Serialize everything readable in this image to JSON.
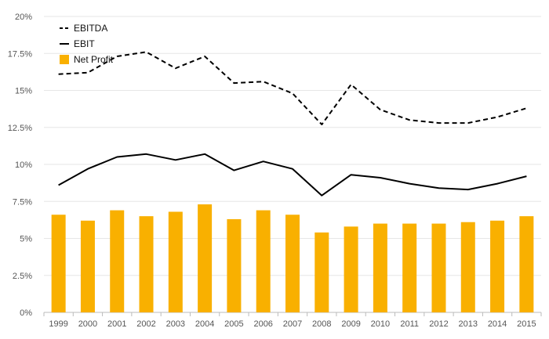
{
  "chart_data": {
    "type": "bar",
    "title": "",
    "xlabel": "",
    "ylabel": "",
    "categories": [
      "1999",
      "2000",
      "2001",
      "2002",
      "2003",
      "2004",
      "2005",
      "2006",
      "2007",
      "2008",
      "2009",
      "2010",
      "2011",
      "2012",
      "2013",
      "2014",
      "2015"
    ],
    "y_tick_labels": [
      "0%",
      "2.5%",
      "5%",
      "7.5%",
      "10%",
      "12.5%",
      "15%",
      "17.5%",
      "20%"
    ],
    "y_ticks": [
      0,
      2.5,
      5,
      7.5,
      10,
      12.5,
      15,
      17.5,
      20
    ],
    "ylim": [
      0,
      20
    ],
    "grid": true,
    "legend_position": "top-left",
    "series": [
      {
        "name": "EBITDA",
        "kind": "line",
        "style": "dashed",
        "color": "#000000",
        "values": [
          16.1,
          16.2,
          17.3,
          17.6,
          16.5,
          17.3,
          15.5,
          15.6,
          14.8,
          12.7,
          15.4,
          13.7,
          13.0,
          12.8,
          12.8,
          13.2,
          13.8
        ]
      },
      {
        "name": "EBIT",
        "kind": "line",
        "style": "solid",
        "color": "#000000",
        "values": [
          8.6,
          9.7,
          10.5,
          10.7,
          10.3,
          10.7,
          9.6,
          10.2,
          9.7,
          7.9,
          9.3,
          9.1,
          8.7,
          8.4,
          8.3,
          8.7,
          9.2
        ]
      },
      {
        "name": "Net Profit",
        "kind": "bar",
        "color": "#F9B000",
        "values": [
          6.6,
          6.2,
          6.9,
          6.5,
          6.8,
          7.3,
          6.3,
          6.9,
          6.6,
          5.4,
          5.8,
          6.0,
          6.0,
          6.0,
          6.1,
          6.2,
          6.5
        ]
      }
    ]
  }
}
